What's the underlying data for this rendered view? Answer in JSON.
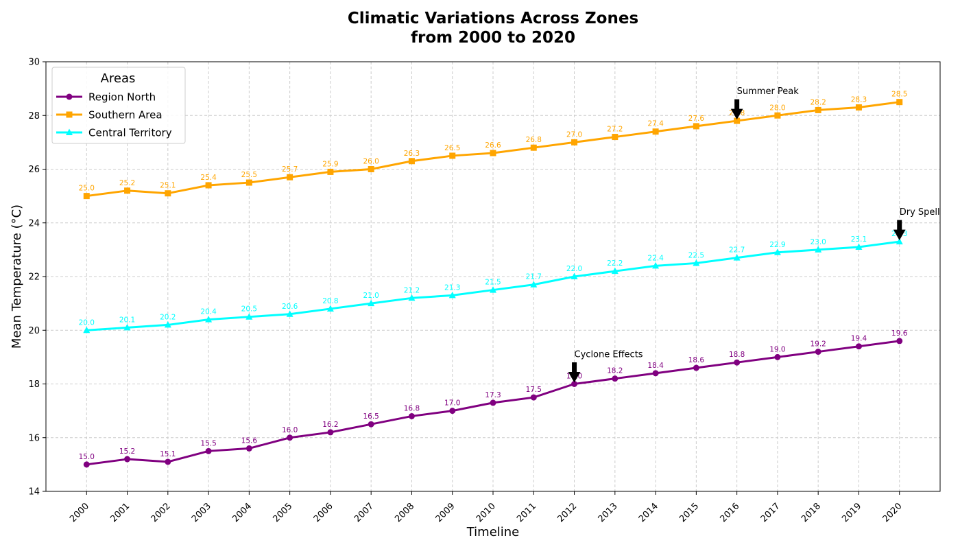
{
  "chart_data": {
    "type": "line",
    "title": "Climatic Variations Across Zones",
    "subtitle": "from 2000 to 2020",
    "xlabel": "Timeline",
    "ylabel": "Mean Temperature (°C)",
    "ylim": [
      14,
      30
    ],
    "yticks": [
      14,
      16,
      18,
      20,
      22,
      24,
      26,
      28,
      30
    ],
    "x": [
      2000,
      2001,
      2002,
      2003,
      2004,
      2005,
      2006,
      2007,
      2008,
      2009,
      2010,
      2011,
      2012,
      2013,
      2014,
      2015,
      2016,
      2017,
      2018,
      2019,
      2020
    ],
    "grid": true,
    "legend": {
      "title": "Areas",
      "placement": "top-left"
    },
    "series": [
      {
        "name": "Region North",
        "color": "#800080",
        "marker": "circle",
        "values": [
          15.0,
          15.2,
          15.1,
          15.5,
          15.6,
          16.0,
          16.2,
          16.5,
          16.8,
          17.0,
          17.3,
          17.5,
          18.0,
          18.2,
          18.4,
          18.6,
          18.8,
          19.0,
          19.2,
          19.4,
          19.6
        ]
      },
      {
        "name": "Southern Area",
        "color": "#FFA500",
        "marker": "square",
        "values": [
          25.0,
          25.2,
          25.1,
          25.4,
          25.5,
          25.7,
          25.9,
          26.0,
          26.3,
          26.5,
          26.6,
          26.8,
          27.0,
          27.2,
          27.4,
          27.6,
          27.8,
          28.0,
          28.2,
          28.3,
          28.5
        ]
      },
      {
        "name": "Central Territory",
        "color": "#00FFFF",
        "marker": "triangle",
        "values": [
          20.0,
          20.1,
          20.2,
          20.4,
          20.5,
          20.6,
          20.8,
          21.0,
          21.2,
          21.3,
          21.5,
          21.7,
          22.0,
          22.2,
          22.4,
          22.5,
          22.7,
          22.9,
          23.0,
          23.1,
          23.3
        ]
      }
    ],
    "annotations": [
      {
        "text": "Summer Peak",
        "x": 2016,
        "y": 27.8,
        "series": "Southern Area"
      },
      {
        "text": "Dry Spell",
        "x": 2020,
        "y": 23.3,
        "series": "Central Territory"
      },
      {
        "text": "Cyclone Effects",
        "x": 2012,
        "y": 18.0,
        "series": "Region North"
      }
    ]
  }
}
